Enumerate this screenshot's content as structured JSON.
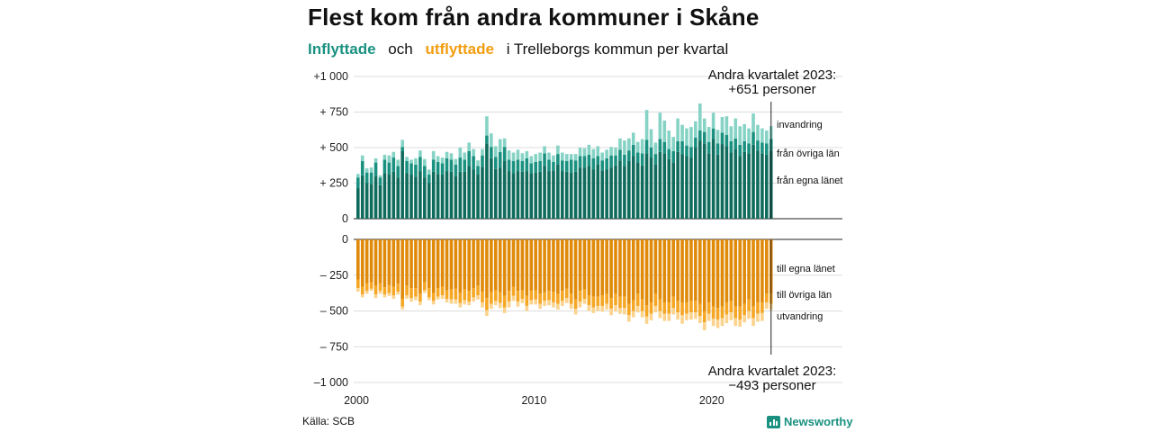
{
  "title": "Flest kom från andra kommuner i Skåne",
  "subtitle": {
    "in_word": "Inflyttade",
    "connector": "och",
    "out_word": "utflyttade",
    "rest": "i Trelleborgs kommun per kvartal"
  },
  "source": "Källa: SCB",
  "brand": "Newsworthy",
  "colors": {
    "in_lan": "#0f6b5c",
    "in_ovriga": "#1a9180",
    "in_invandring": "#86d3c6",
    "out_lan": "#e08a0a",
    "out_ovriga": "#f5a623",
    "out_utvandring": "#fbd38d"
  },
  "chart_data": {
    "type": "bar",
    "stacked": true,
    "panels": [
      "inflyttade",
      "utflyttade"
    ],
    "x_label_ticks": [
      "2000",
      "2010",
      "2020"
    ],
    "y_ticks_top": [
      "+1 000",
      "+  750",
      "+  500",
      "+  250",
      "0"
    ],
    "y_ticks_bottom": [
      "0",
      "–  250",
      "–  500",
      "–  750",
      "–1 000"
    ],
    "ylim_top": [
      0,
      1000
    ],
    "ylim_bottom": [
      -1000,
      0
    ],
    "grid": true,
    "start_year": 2000,
    "end_year": 2023,
    "end_quarter": 2,
    "series_labels_in": [
      "invandring",
      "från övriga län",
      "från egna länet"
    ],
    "series_labels_out": [
      "till egna länet",
      "till övriga län",
      "utvandring"
    ],
    "annotation_top": [
      "Andra kvartalet 2023:",
      "+651 personer"
    ],
    "annotation_bottom": [
      "Andra kvartalet 2023:",
      "−493 personer"
    ],
    "quarters": [
      "2000Q1",
      "2000Q2",
      "2000Q3",
      "2000Q4",
      "2001Q1",
      "2001Q2",
      "2001Q3",
      "2001Q4",
      "2002Q1",
      "2002Q2",
      "2002Q3",
      "2002Q4",
      "2003Q1",
      "2003Q2",
      "2003Q3",
      "2003Q4",
      "2004Q1",
      "2004Q2",
      "2004Q3",
      "2004Q4",
      "2005Q1",
      "2005Q2",
      "2005Q3",
      "2005Q4",
      "2006Q1",
      "2006Q2",
      "2006Q3",
      "2006Q4",
      "2007Q1",
      "2007Q2",
      "2007Q3",
      "2007Q4",
      "2008Q1",
      "2008Q2",
      "2008Q3",
      "2008Q4",
      "2009Q1",
      "2009Q2",
      "2009Q3",
      "2009Q4",
      "2010Q1",
      "2010Q2",
      "2010Q3",
      "2010Q4",
      "2011Q1",
      "2011Q2",
      "2011Q3",
      "2011Q4",
      "2012Q1",
      "2012Q2",
      "2012Q3",
      "2012Q4",
      "2013Q1",
      "2013Q2",
      "2013Q3",
      "2013Q4",
      "2014Q1",
      "2014Q2",
      "2014Q3",
      "2014Q4",
      "2015Q1",
      "2015Q2",
      "2015Q3",
      "2015Q4",
      "2016Q1",
      "2016Q2",
      "2016Q3",
      "2016Q4",
      "2017Q1",
      "2017Q2",
      "2017Q3",
      "2017Q4",
      "2018Q1",
      "2018Q2",
      "2018Q3",
      "2018Q4",
      "2019Q1",
      "2019Q2",
      "2019Q3",
      "2019Q4",
      "2020Q1",
      "2020Q2",
      "2020Q3",
      "2020Q4",
      "2021Q1",
      "2021Q2",
      "2021Q3",
      "2021Q4",
      "2022Q1",
      "2022Q2",
      "2022Q3",
      "2022Q4",
      "2023Q1",
      "2023Q2"
    ],
    "in_egna_lan": [
      215,
      305,
      250,
      245,
      300,
      235,
      320,
      310,
      330,
      290,
      475,
      320,
      310,
      295,
      335,
      290,
      250,
      330,
      315,
      310,
      335,
      330,
      300,
      330,
      330,
      370,
      345,
      310,
      365,
      530,
      425,
      350,
      360,
      405,
      335,
      320,
      335,
      330,
      335,
      320,
      325,
      330,
      370,
      335,
      340,
      380,
      335,
      330,
      325,
      330,
      360,
      360,
      370,
      345,
      380,
      340,
      345,
      360,
      375,
      410,
      370,
      405,
      440,
      395,
      375,
      460,
      430,
      380,
      470,
      460,
      420,
      395,
      470,
      455,
      440,
      430,
      500,
      550,
      530,
      460,
      560,
      450,
      525,
      510,
      465,
      490,
      440,
      470,
      460,
      520,
      480,
      460,
      450,
      480
    ],
    "in_ovriga_lan": [
      75,
      100,
      75,
      80,
      95,
      55,
      95,
      85,
      100,
      80,
      30,
      85,
      80,
      85,
      100,
      80,
      60,
      85,
      85,
      80,
      90,
      85,
      80,
      100,
      85,
      105,
      95,
      60,
      80,
      55,
      80,
      85,
      110,
      100,
      80,
      85,
      80,
      75,
      90,
      70,
      75,
      75,
      90,
      80,
      60,
      75,
      75,
      75,
      90,
      80,
      80,
      80,
      80,
      80,
      60,
      70,
      80,
      85,
      70,
      75,
      80,
      75,
      80,
      70,
      85,
      95,
      70,
      75,
      90,
      80,
      70,
      80,
      75,
      90,
      75,
      75,
      70,
      70,
      80,
      80,
      75,
      80,
      80,
      80,
      80,
      75,
      80,
      75,
      70,
      90,
      70,
      75,
      80,
      80
    ],
    "in_invandring": [
      25,
      40,
      30,
      35,
      30,
      15,
      35,
      50,
      40,
      45,
      50,
      30,
      25,
      45,
      45,
      50,
      35,
      60,
      40,
      40,
      45,
      45,
      40,
      70,
      50,
      60,
      50,
      40,
      45,
      135,
      95,
      75,
      90,
      60,
      65,
      60,
      70,
      55,
      50,
      50,
      55,
      60,
      50,
      50,
      45,
      60,
      55,
      50,
      40,
      45,
      60,
      55,
      70,
      65,
      70,
      55,
      60,
      60,
      55,
      80,
      100,
      85,
      85,
      75,
      100,
      210,
      130,
      80,
      185,
      150,
      130,
      100,
      160,
      115,
      120,
      140,
      115,
      190,
      95,
      105,
      110,
      95,
      110,
      130,
      105,
      140,
      130,
      120,
      105,
      130,
      110,
      100,
      90,
      91
    ],
    "out_egna_lan": [
      280,
      330,
      305,
      300,
      325,
      305,
      335,
      320,
      330,
      310,
      415,
      325,
      340,
      340,
      380,
      300,
      340,
      375,
      340,
      330,
      355,
      350,
      345,
      375,
      350,
      360,
      340,
      325,
      365,
      410,
      370,
      355,
      370,
      395,
      360,
      330,
      360,
      355,
      395,
      360,
      355,
      380,
      370,
      360,
      365,
      380,
      360,
      345,
      380,
      420,
      360,
      350,
      390,
      400,
      400,
      390,
      380,
      410,
      380,
      400,
      400,
      450,
      425,
      380,
      420,
      460,
      440,
      380,
      420,
      440,
      440,
      400,
      430,
      440,
      440,
      430,
      430,
      450,
      500,
      440,
      470,
      480,
      470,
      440,
      430,
      470,
      470,
      450,
      420,
      470,
      440,
      440,
      380,
      380
    ],
    "out_ovriga_lan": [
      60,
      55,
      55,
      45,
      60,
      55,
      50,
      55,
      60,
      55,
      55,
      65,
      70,
      60,
      55,
      55,
      65,
      55,
      60,
      60,
      60,
      70,
      75,
      70,
      75,
      75,
      65,
      65,
      75,
      85,
      80,
      75,
      75,
      80,
      75,
      65,
      75,
      60,
      70,
      65,
      65,
      70,
      60,
      65,
      75,
      70,
      70,
      65,
      70,
      65,
      75,
      65,
      70,
      75,
      65,
      75,
      70,
      75,
      80,
      80,
      80,
      80,
      75,
      85,
      80,
      80,
      80,
      85,
      80,
      80,
      80,
      80,
      80,
      90,
      80,
      80,
      80,
      85,
      80,
      80,
      85,
      80,
      80,
      85,
      80,
      80,
      90,
      80,
      80,
      80,
      80,
      75,
      60,
      70
    ],
    "out_utvandring": [
      25,
      20,
      20,
      15,
      25,
      20,
      20,
      20,
      25,
      20,
      20,
      25,
      25,
      25,
      25,
      20,
      20,
      25,
      20,
      25,
      25,
      30,
      30,
      30,
      30,
      25,
      30,
      30,
      35,
      40,
      35,
      30,
      35,
      40,
      40,
      35,
      35,
      30,
      35,
      30,
      35,
      35,
      35,
      35,
      35,
      40,
      35,
      35,
      35,
      40,
      40,
      35,
      40,
      40,
      35,
      40,
      40,
      45,
      45,
      40,
      45,
      45,
      45,
      45,
      45,
      50,
      45,
      45,
      50,
      50,
      50,
      45,
      50,
      60,
      45,
      50,
      45,
      50,
      55,
      50,
      50,
      60,
      55,
      60,
      55,
      55,
      50,
      50,
      55,
      55,
      55,
      55,
      45,
      43
    ]
  }
}
